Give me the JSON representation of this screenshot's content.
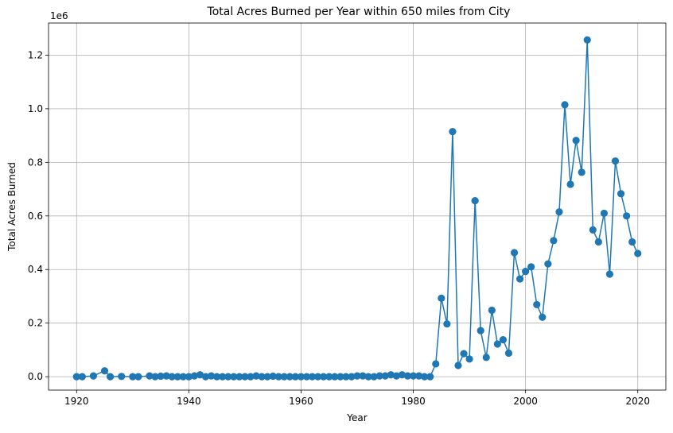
{
  "chart_data": {
    "type": "line",
    "title": "Total Acres Burned per Year within 650 miles from City",
    "xlabel": "Year",
    "ylabel": "Total Acres Burned",
    "y_offset_text": "1e6",
    "xlim": [
      1915,
      2025
    ],
    "ylim": [
      -50000,
      1320000
    ],
    "x_ticks": [
      1920,
      1940,
      1960,
      1980,
      2000,
      2020
    ],
    "x_tick_labels": [
      "1920",
      "1940",
      "1960",
      "1980",
      "2000",
      "2020"
    ],
    "y_ticks": [
      0,
      200000,
      400000,
      600000,
      800000,
      1000000,
      1200000
    ],
    "y_tick_labels": [
      "0.0",
      "0.2",
      "0.4",
      "0.6",
      "0.8",
      "1.0",
      "1.2"
    ],
    "grid": true,
    "marker": "circle",
    "color": "#1f77b4",
    "series": [
      {
        "x": [
          1920,
          1921,
          1923,
          1925,
          1926,
          1928,
          1930,
          1931,
          1933,
          1934,
          1935,
          1936,
          1937,
          1938,
          1939,
          1940,
          1941,
          1942,
          1943,
          1944,
          1945,
          1946,
          1947,
          1948,
          1949,
          1950,
          1951,
          1952,
          1953,
          1954,
          1955,
          1956,
          1957,
          1958,
          1959,
          1960,
          1961,
          1962,
          1963,
          1964,
          1965,
          1966,
          1967,
          1968,
          1969,
          1970,
          1971,
          1972,
          1973,
          1974,
          1975,
          1976,
          1977,
          1978,
          1979,
          1980,
          1981,
          1982,
          1983,
          1984,
          1985,
          1986,
          1987,
          1988,
          1989,
          1990,
          1991,
          1992,
          1993,
          1994,
          1995,
          1996,
          1997,
          1998,
          1999,
          2000,
          2001,
          2002,
          2003,
          2004,
          2005,
          2006,
          2007,
          2008,
          2009,
          2010,
          2011,
          2012,
          2013,
          2014,
          2015,
          2016,
          2017,
          2018,
          2019,
          2020
        ],
        "y": [
          0,
          0,
          3000,
          22000,
          0,
          1000,
          0,
          0,
          3000,
          0,
          2000,
          3000,
          0,
          0,
          0,
          0,
          3000,
          7000,
          0,
          3000,
          0,
          0,
          0,
          0,
          0,
          0,
          0,
          3000,
          0,
          0,
          2000,
          0,
          0,
          0,
          0,
          0,
          0,
          0,
          0,
          0,
          0,
          0,
          0,
          0,
          0,
          3000,
          3000,
          0,
          0,
          3000,
          3000,
          7000,
          3000,
          7000,
          3000,
          3000,
          3000,
          0,
          0,
          48000,
          293000,
          197000,
          915000,
          42000,
          86000,
          66000,
          657000,
          172000,
          72000,
          248000,
          122000,
          138000,
          88000,
          463000,
          365000,
          393000,
          410000,
          269000,
          222000,
          421000,
          508000,
          615000,
          1015000,
          718000,
          882000,
          763000,
          1257000,
          548000,
          503000,
          610000,
          383000,
          805000,
          683000,
          600000,
          503000,
          460000
        ]
      }
    ]
  }
}
